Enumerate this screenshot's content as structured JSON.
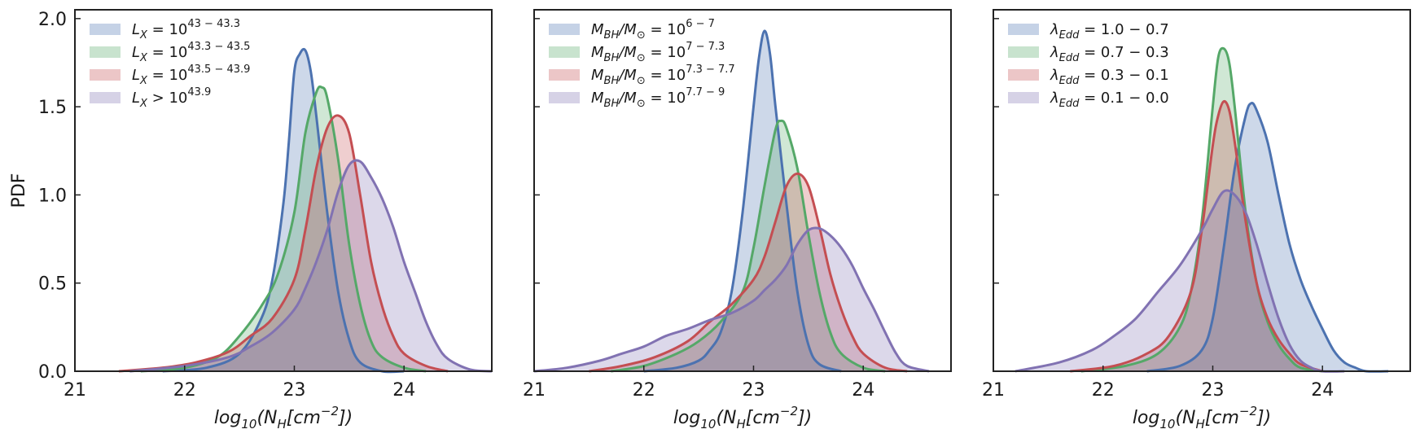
{
  "figure": {
    "ylabel": "PDF",
    "x_tick_labels": [
      "21",
      "22",
      "23",
      "24"
    ],
    "y_tick_labels": [
      "0.0",
      "0.5",
      "1.0",
      "1.5",
      "2.0"
    ]
  },
  "colors": {
    "blue": "#4c72b0",
    "green": "#55a868",
    "red": "#c44e52",
    "purple": "#8172b2",
    "axis": "#222222"
  },
  "chart_data": [
    {
      "type": "area",
      "title": "",
      "xlabel": "log10(NH[cm−2])",
      "xlabel_parts": {
        "pre": "log",
        "sub": "10",
        "mid": "(N",
        "sub2": "H",
        "post": "[cm",
        "sup": "−2",
        "end": "])"
      },
      "ylabel": "PDF",
      "xlim": [
        21,
        24.8
      ],
      "ylim": [
        0,
        2.05
      ],
      "legend_position": "top-left",
      "series": [
        {
          "name": "L_X = 10^(43−43.3)",
          "legend": {
            "base": "L",
            "sub": "X",
            "mid": " = 10",
            "sup": "43 − 43.3"
          },
          "color": "blue",
          "x": [
            21.8,
            22.2,
            22.5,
            22.7,
            22.8,
            22.9,
            22.95,
            23.0,
            23.05,
            23.1,
            23.15,
            23.2,
            23.3,
            23.4,
            23.5,
            23.6,
            23.8,
            24.0
          ],
          "y": [
            0.0,
            0.02,
            0.1,
            0.3,
            0.52,
            0.95,
            1.3,
            1.7,
            1.8,
            1.82,
            1.7,
            1.45,
            0.9,
            0.45,
            0.18,
            0.05,
            0.0,
            0.0
          ]
        },
        {
          "name": "L_X = 10^(43.3−43.5)",
          "legend": {
            "base": "L",
            "sub": "X",
            "mid": " = 10",
            "sup": "43.3 − 43.5"
          },
          "color": "green",
          "x": [
            21.6,
            22.0,
            22.3,
            22.5,
            22.7,
            22.85,
            23.0,
            23.1,
            23.2,
            23.25,
            23.3,
            23.4,
            23.5,
            23.6,
            23.7,
            23.8,
            24.0,
            24.2
          ],
          "y": [
            0.0,
            0.02,
            0.08,
            0.2,
            0.37,
            0.55,
            0.9,
            1.35,
            1.58,
            1.61,
            1.55,
            1.2,
            0.72,
            0.38,
            0.17,
            0.08,
            0.02,
            0.0
          ]
        },
        {
          "name": "L_X = 10^(43.5−43.9)",
          "legend": {
            "base": "L",
            "sub": "X",
            "mid": " = 10",
            "sup": "43.5 − 43.9"
          },
          "color": "red",
          "x": [
            21.4,
            21.8,
            22.1,
            22.4,
            22.6,
            22.8,
            23.0,
            23.1,
            23.2,
            23.3,
            23.4,
            23.5,
            23.6,
            23.7,
            23.8,
            23.9,
            24.0,
            24.2,
            24.4
          ],
          "y": [
            0.0,
            0.02,
            0.05,
            0.11,
            0.2,
            0.3,
            0.52,
            0.8,
            1.15,
            1.38,
            1.45,
            1.35,
            1.0,
            0.62,
            0.37,
            0.2,
            0.1,
            0.03,
            0.0
          ]
        },
        {
          "name": "L_X > 10^43.9",
          "legend": {
            "base": "L",
            "sub": "X",
            "mid": " > 10",
            "sup": "43.9"
          },
          "color": "purple",
          "x": [
            21.5,
            22.0,
            22.4,
            22.6,
            22.8,
            23.0,
            23.1,
            23.2,
            23.3,
            23.4,
            23.5,
            23.6,
            23.7,
            23.8,
            23.9,
            24.0,
            24.1,
            24.2,
            24.3,
            24.4,
            24.6,
            24.8
          ],
          "y": [
            0.0,
            0.03,
            0.08,
            0.14,
            0.22,
            0.35,
            0.47,
            0.62,
            0.8,
            1.02,
            1.17,
            1.19,
            1.1,
            0.98,
            0.82,
            0.62,
            0.45,
            0.28,
            0.15,
            0.07,
            0.01,
            0.0
          ]
        }
      ]
    },
    {
      "type": "area",
      "title": "",
      "xlabel": "log10(NH[cm−2])",
      "xlabel_parts": {
        "pre": "log",
        "sub": "10",
        "mid": "(N",
        "sub2": "H",
        "post": "[cm",
        "sup": "−2",
        "end": "])"
      },
      "xlim": [
        21,
        24.8
      ],
      "ylim": [
        0,
        2.05
      ],
      "legend_position": "top-left",
      "series": [
        {
          "name": "MBH/M⊙ = 10^(6−7)",
          "legend": {
            "base": "M",
            "sub": "BH",
            "mid": "/M",
            "sub2": "⊙",
            "mid2": " = 10",
            "sup": "6 − 7"
          },
          "color": "blue",
          "x": [
            22.0,
            22.3,
            22.5,
            22.6,
            22.7,
            22.8,
            22.9,
            23.0,
            23.05,
            23.1,
            23.15,
            23.2,
            23.3,
            23.4,
            23.5,
            23.6,
            23.8
          ],
          "y": [
            0.0,
            0.02,
            0.06,
            0.12,
            0.22,
            0.45,
            0.9,
            1.5,
            1.78,
            1.93,
            1.8,
            1.5,
            0.95,
            0.45,
            0.15,
            0.04,
            0.0
          ]
        },
        {
          "name": "MBH/M⊙ = 10^(7−7.3)",
          "legend": {
            "base": "M",
            "sub": "BH",
            "mid": "/M",
            "sub2": "⊙",
            "mid2": " = 10",
            "sup": "7 − 7.3"
          },
          "color": "green",
          "x": [
            21.7,
            22.0,
            22.3,
            22.5,
            22.7,
            22.9,
            23.0,
            23.1,
            23.2,
            23.25,
            23.3,
            23.4,
            23.5,
            23.6,
            23.7,
            23.8,
            24.0,
            24.2
          ],
          "y": [
            0.0,
            0.03,
            0.1,
            0.17,
            0.28,
            0.45,
            0.7,
            1.05,
            1.37,
            1.42,
            1.38,
            1.15,
            0.78,
            0.45,
            0.22,
            0.1,
            0.02,
            0.0
          ]
        },
        {
          "name": "MBH/M⊙ = 10^(7.3−7.7)",
          "legend": {
            "base": "M",
            "sub": "BH",
            "mid": "/M",
            "sub2": "⊙",
            "mid2": " = 10",
            "sup": "7.3 − 7.7"
          },
          "color": "red",
          "x": [
            21.5,
            21.8,
            22.1,
            22.4,
            22.6,
            22.8,
            23.0,
            23.1,
            23.2,
            23.3,
            23.4,
            23.5,
            23.6,
            23.7,
            23.8,
            23.9,
            24.0,
            24.2,
            24.4
          ],
          "y": [
            0.0,
            0.03,
            0.08,
            0.17,
            0.28,
            0.38,
            0.52,
            0.65,
            0.85,
            1.05,
            1.12,
            1.05,
            0.82,
            0.55,
            0.35,
            0.2,
            0.1,
            0.02,
            0.0
          ]
        },
        {
          "name": "MBH/M⊙ = 10^(7.7−9)",
          "legend": {
            "base": "M",
            "sub": "BH",
            "mid": "/M",
            "sub2": "⊙",
            "mid2": " = 10",
            "sup": "7.7 − 9"
          },
          "color": "purple",
          "x": [
            21.0,
            21.3,
            21.6,
            21.8,
            22.0,
            22.2,
            22.4,
            22.6,
            22.8,
            23.0,
            23.1,
            23.2,
            23.3,
            23.4,
            23.5,
            23.6,
            23.7,
            23.8,
            23.9,
            24.0,
            24.1,
            24.2,
            24.3,
            24.4,
            24.6
          ],
          "y": [
            0.0,
            0.02,
            0.06,
            0.1,
            0.14,
            0.2,
            0.24,
            0.29,
            0.33,
            0.4,
            0.46,
            0.52,
            0.6,
            0.72,
            0.8,
            0.81,
            0.77,
            0.7,
            0.6,
            0.47,
            0.35,
            0.22,
            0.1,
            0.03,
            0.0
          ]
        }
      ]
    },
    {
      "type": "area",
      "title": "",
      "xlabel": "log10(NH[cm−2])",
      "xlabel_parts": {
        "pre": "log",
        "sub": "10",
        "mid": "(N",
        "sub2": "H",
        "post": "[cm",
        "sup": "−2",
        "end": "])"
      },
      "xlim": [
        21,
        24.8
      ],
      "ylim": [
        0,
        2.05
      ],
      "legend_position": "top-left",
      "series": [
        {
          "name": "λEdd = 1.0 − 0.7",
          "legend": {
            "base": "λ",
            "sub": "Edd",
            "mid": " = 1.0 − 0.7"
          },
          "color": "blue",
          "x": [
            22.4,
            22.7,
            22.9,
            23.0,
            23.1,
            23.2,
            23.3,
            23.35,
            23.4,
            23.5,
            23.6,
            23.7,
            23.8,
            23.9,
            24.0,
            24.1,
            24.2,
            24.3,
            24.4,
            24.6
          ],
          "y": [
            0.0,
            0.03,
            0.12,
            0.3,
            0.7,
            1.15,
            1.45,
            1.52,
            1.48,
            1.3,
            1.0,
            0.72,
            0.52,
            0.37,
            0.24,
            0.12,
            0.05,
            0.02,
            0.0,
            0.0
          ]
        },
        {
          "name": "λEdd = 0.7 − 0.3",
          "legend": {
            "base": "λ",
            "sub": "Edd",
            "mid": " = 0.7 − 0.3"
          },
          "color": "green",
          "x": [
            21.8,
            22.2,
            22.5,
            22.7,
            22.8,
            22.9,
            23.0,
            23.05,
            23.1,
            23.15,
            23.2,
            23.3,
            23.4,
            23.5,
            23.6,
            23.7,
            23.8,
            24.0
          ],
          "y": [
            0.0,
            0.03,
            0.1,
            0.25,
            0.45,
            0.85,
            1.5,
            1.78,
            1.83,
            1.75,
            1.5,
            0.9,
            0.5,
            0.28,
            0.15,
            0.07,
            0.02,
            0.0
          ]
        },
        {
          "name": "λEdd = 0.3 − 0.1",
          "legend": {
            "base": "λ",
            "sub": "Edd",
            "mid": " = 0.3 − 0.1"
          },
          "color": "red",
          "x": [
            21.7,
            22.1,
            22.4,
            22.6,
            22.8,
            22.9,
            23.0,
            23.05,
            23.1,
            23.15,
            23.2,
            23.3,
            23.4,
            23.5,
            23.6,
            23.7,
            23.8,
            24.0
          ],
          "y": [
            0.0,
            0.03,
            0.1,
            0.2,
            0.45,
            0.8,
            1.28,
            1.45,
            1.53,
            1.48,
            1.3,
            0.85,
            0.5,
            0.3,
            0.18,
            0.1,
            0.04,
            0.0
          ]
        },
        {
          "name": "λEdd = 0.1 − 0.0",
          "legend": {
            "base": "λ",
            "sub": "Edd",
            "mid": " = 0.1 − 0.0"
          },
          "color": "purple",
          "x": [
            21.2,
            21.6,
            21.9,
            22.1,
            22.3,
            22.5,
            22.7,
            22.9,
            23.0,
            23.1,
            23.2,
            23.3,
            23.4,
            23.5,
            23.6,
            23.7,
            23.8,
            23.9,
            24.0,
            24.2
          ],
          "y": [
            0.0,
            0.05,
            0.12,
            0.2,
            0.3,
            0.45,
            0.6,
            0.8,
            0.92,
            1.02,
            1.0,
            0.9,
            0.72,
            0.5,
            0.3,
            0.15,
            0.06,
            0.02,
            0.0,
            0.0
          ]
        }
      ]
    }
  ]
}
